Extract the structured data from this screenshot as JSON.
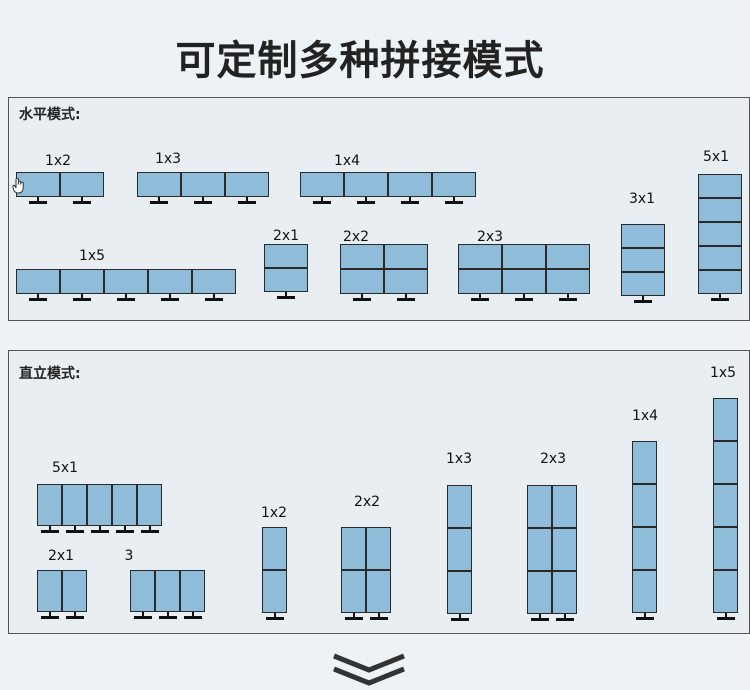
{
  "title": "可定制多种拼接模式",
  "horizontal": {
    "label": "水平模式:",
    "configs": [
      {
        "label": "1x2",
        "rows": 1,
        "cols": 2
      },
      {
        "label": "1x3",
        "rows": 1,
        "cols": 3
      },
      {
        "label": "1x4",
        "rows": 1,
        "cols": 4
      },
      {
        "label": "5x1",
        "rows": 5,
        "cols": 1
      },
      {
        "label": "3x1",
        "rows": 3,
        "cols": 1
      },
      {
        "label": "1x5",
        "rows": 1,
        "cols": 5
      },
      {
        "label": "2x1",
        "rows": 2,
        "cols": 1
      },
      {
        "label": "2x2",
        "rows": 2,
        "cols": 2
      },
      {
        "label": "2x3",
        "rows": 2,
        "cols": 3
      }
    ]
  },
  "vertical": {
    "label": "直立模式:",
    "configs": [
      {
        "label": "5x1",
        "rows": 1,
        "cols": 5
      },
      {
        "label": "2x1",
        "rows": 1,
        "cols": 2
      },
      {
        "label": "3",
        "rows": 1,
        "cols": 3
      },
      {
        "label": "1x2",
        "rows": 2,
        "cols": 1
      },
      {
        "label": "2x2",
        "rows": 2,
        "cols": 2
      },
      {
        "label": "1x3",
        "rows": 3,
        "cols": 1
      },
      {
        "label": "2x3",
        "rows": 3,
        "cols": 2
      },
      {
        "label": "1x4",
        "rows": 4,
        "cols": 1
      },
      {
        "label": "1x5",
        "rows": 5,
        "cols": 1
      }
    ]
  },
  "icons": {
    "cursor": "hand-cursor-icon",
    "more": "double-chevron-down-icon"
  },
  "colors": {
    "screen": "#8fbcd8",
    "border": "#2a2a2a",
    "background": "#edf2f6"
  }
}
